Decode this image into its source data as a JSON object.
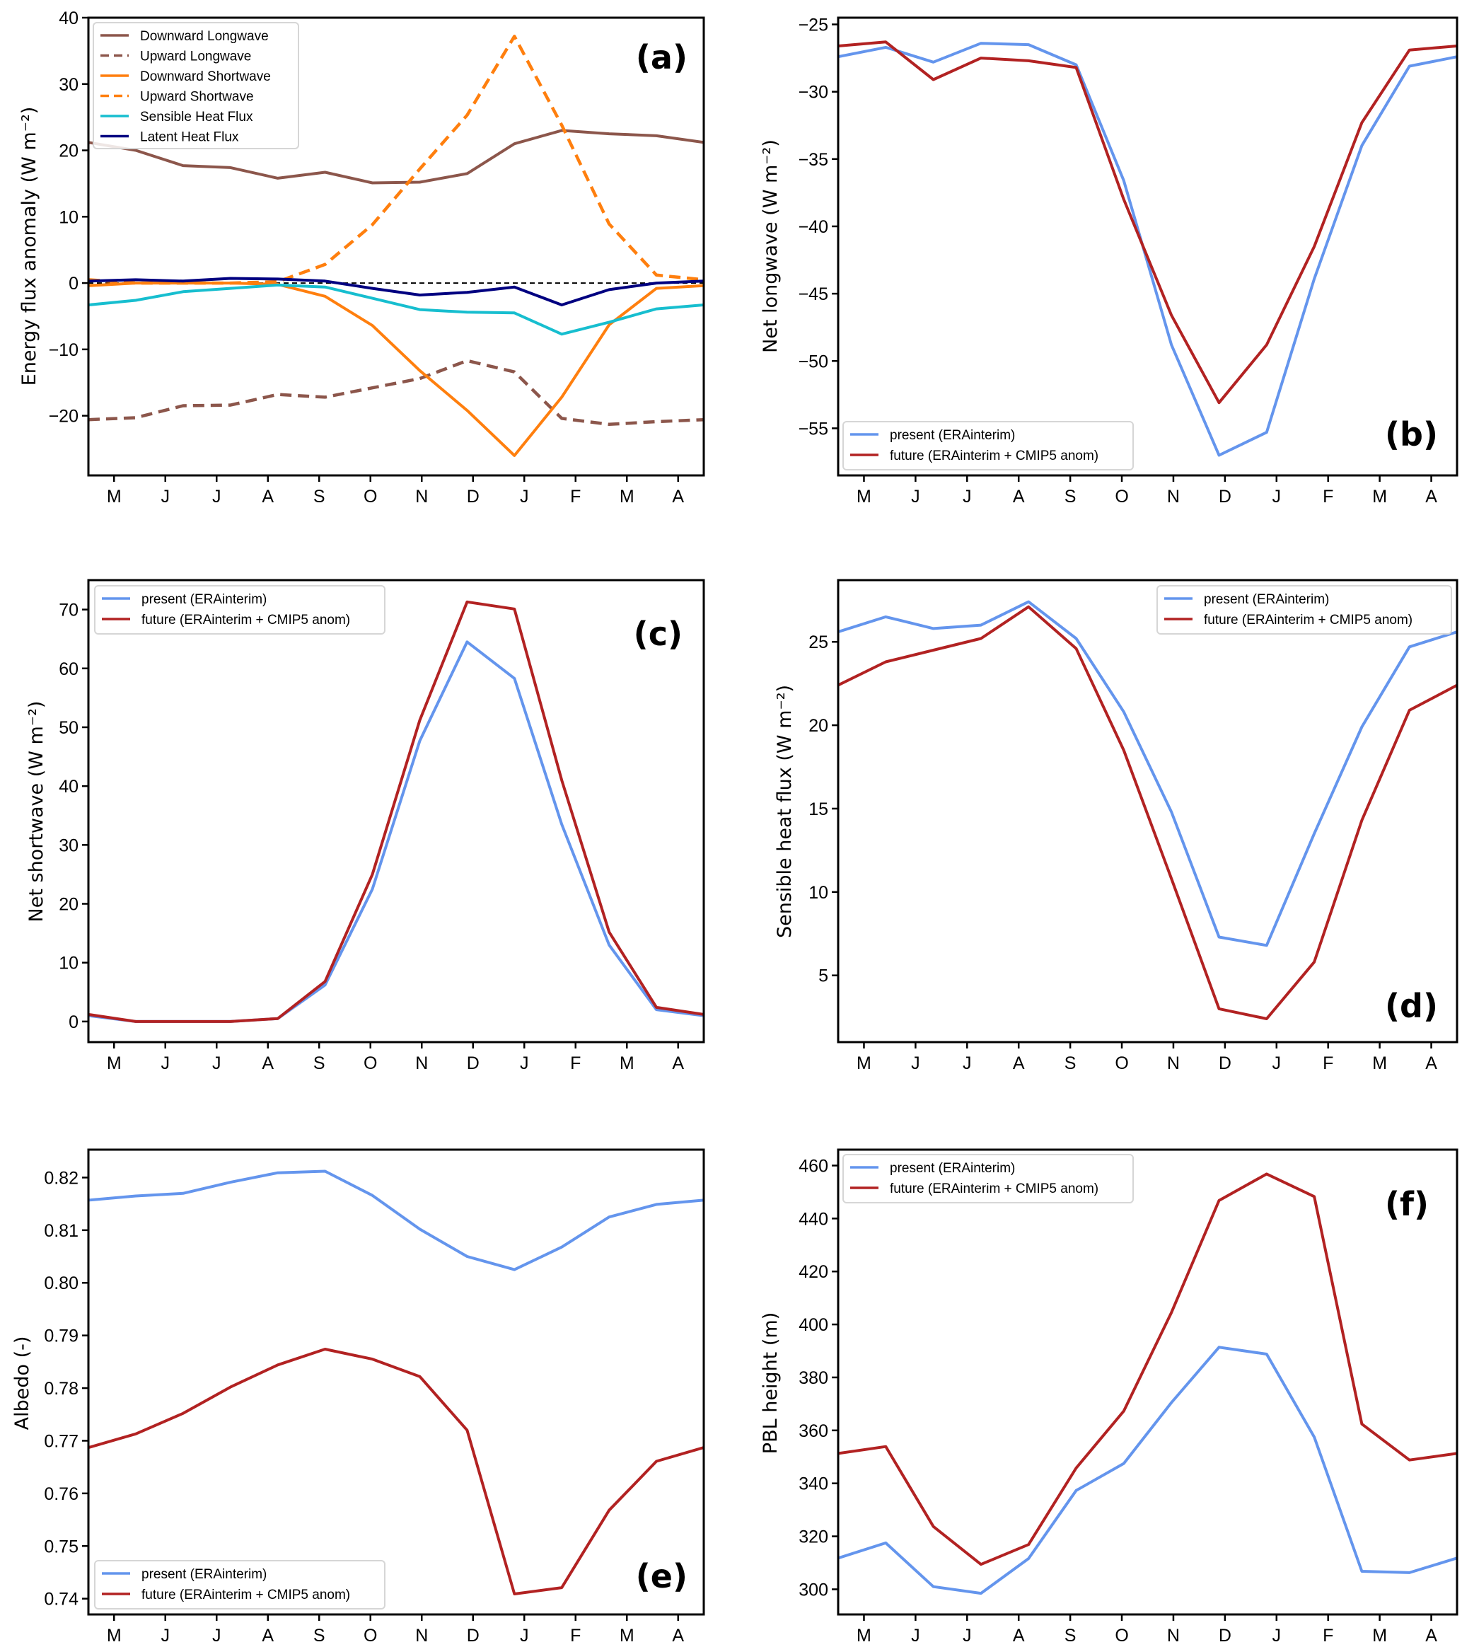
{
  "figure": {
    "months": [
      "M",
      "J",
      "J",
      "A",
      "S",
      "O",
      "N",
      "D",
      "J",
      "F",
      "M",
      "A"
    ]
  },
  "chart_data": [
    {
      "id": "a",
      "type": "line",
      "panel_label": "(a)",
      "ylabel": "Energy flux anomaly (W m⁻²)",
      "xlabel": "",
      "x_tick_labels": [
        "M",
        "J",
        "J",
        "A",
        "S",
        "O",
        "N",
        "D",
        "J",
        "F",
        "M",
        "A"
      ],
      "ylim": [
        -29,
        40
      ],
      "yticks": [
        -20,
        -10,
        0,
        10,
        20,
        30,
        40
      ],
      "ytick_labels": [
        "−20",
        "−10",
        "0",
        "10",
        "20",
        "30",
        "40"
      ],
      "zero_line": true,
      "legend_position": "top-left",
      "series": [
        {
          "name": "Downward Longwave",
          "color": "#8c564b",
          "style": "solid",
          "values": [
            21.2,
            20.0,
            17.7,
            17.4,
            15.8,
            16.7,
            15.1,
            15.2,
            16.5,
            21.0,
            23.0,
            22.5,
            22.2,
            21.2
          ]
        },
        {
          "name": "Upward Longwave",
          "color": "#8c564b",
          "style": "dashed",
          "values": [
            -20.6,
            -20.3,
            -18.5,
            -18.4,
            -16.8,
            -17.2,
            -15.8,
            -14.4,
            -11.7,
            -13.4,
            -20.4,
            -21.3,
            -20.9,
            -20.6
          ]
        },
        {
          "name": "Downward Shortwave",
          "color": "#ff7f0e",
          "style": "solid",
          "values": [
            -0.4,
            0.0,
            0.0,
            0.0,
            -0.2,
            -2.0,
            -6.4,
            -13.2,
            -19.2,
            -26.0,
            -17.2,
            -6.3,
            -0.8,
            -0.4
          ]
        },
        {
          "name": "Upward Shortwave",
          "color": "#ff7f0e",
          "style": "dashed",
          "values": [
            0.5,
            0.0,
            0.0,
            0.0,
            0.2,
            2.8,
            8.8,
            17.2,
            25.3,
            37.2,
            23.8,
            8.9,
            1.2,
            0.5
          ]
        },
        {
          "name": "Sensible Heat Flux",
          "color": "#17becf",
          "style": "solid",
          "values": [
            -3.3,
            -2.6,
            -1.3,
            -0.8,
            -0.3,
            -0.6,
            -2.3,
            -4.0,
            -4.4,
            -4.5,
            -7.7,
            -5.9,
            -3.9,
            -3.3
          ]
        },
        {
          "name": "Latent Heat Flux",
          "color": "#000080",
          "style": "solid",
          "values": [
            0.3,
            0.5,
            0.3,
            0.7,
            0.6,
            0.3,
            -0.8,
            -1.8,
            -1.4,
            -0.6,
            -3.3,
            -1.0,
            0.0,
            0.3
          ]
        }
      ]
    },
    {
      "id": "b",
      "type": "line",
      "panel_label": "(b)",
      "ylabel": "Net longwave (W m⁻²)",
      "xlabel": "",
      "x_tick_labels": [
        "M",
        "J",
        "J",
        "A",
        "S",
        "O",
        "N",
        "D",
        "J",
        "F",
        "M",
        "A"
      ],
      "ylim": [
        -58.5,
        -24.5
      ],
      "yticks": [
        -55,
        -50,
        -45,
        -40,
        -35,
        -30,
        -25
      ],
      "ytick_labels": [
        "−55",
        "−50",
        "−45",
        "−40",
        "−35",
        "−30",
        "−25"
      ],
      "legend_position": "bottom-left",
      "series": [
        {
          "name": "present (ERAinterim)",
          "color": "#6495ed",
          "style": "solid",
          "values": [
            -27.4,
            -26.7,
            -27.8,
            -26.4,
            -26.5,
            -28.0,
            -36.6,
            -48.8,
            -57.0,
            -55.3,
            -43.9,
            -34.0,
            -28.1,
            -27.4
          ]
        },
        {
          "name": "future (ERAinterim + CMIP5 anom)",
          "color": "#b22222",
          "style": "solid",
          "values": [
            -26.6,
            -26.3,
            -29.1,
            -27.5,
            -27.7,
            -28.2,
            -38.0,
            -46.6,
            -53.1,
            -48.8,
            -41.5,
            -32.3,
            -26.9,
            -26.6
          ]
        }
      ]
    },
    {
      "id": "c",
      "type": "line",
      "panel_label": "(c)",
      "ylabel": "Net shortwave (W m⁻²)",
      "xlabel": "",
      "x_tick_labels": [
        "M",
        "J",
        "J",
        "A",
        "S",
        "O",
        "N",
        "D",
        "J",
        "F",
        "M",
        "A"
      ],
      "ylim": [
        -3.5,
        75
      ],
      "yticks": [
        0,
        10,
        20,
        30,
        40,
        50,
        60,
        70
      ],
      "ytick_labels": [
        "0",
        "10",
        "20",
        "30",
        "40",
        "50",
        "60",
        "70"
      ],
      "legend_position": "top-left",
      "series": [
        {
          "name": "present (ERAinterim)",
          "color": "#6495ed",
          "style": "solid",
          "values": [
            1.0,
            0.0,
            0.0,
            0.0,
            0.5,
            6.2,
            22.5,
            47.7,
            64.5,
            58.3,
            33.5,
            13.0,
            2.0,
            1.0
          ]
        },
        {
          "name": "future (ERAinterim + CMIP5 anom)",
          "color": "#b22222",
          "style": "solid",
          "values": [
            1.2,
            0.0,
            0.0,
            0.0,
            0.5,
            6.8,
            25.0,
            51.2,
            71.3,
            70.1,
            41.0,
            15.2,
            2.4,
            1.2
          ]
        }
      ]
    },
    {
      "id": "d",
      "type": "line",
      "panel_label": "(d)",
      "ylabel": "Sensible heat flux (W m⁻²)",
      "xlabel": "",
      "x_tick_labels": [
        "M",
        "J",
        "J",
        "A",
        "S",
        "O",
        "N",
        "D",
        "J",
        "F",
        "M",
        "A"
      ],
      "ylim": [
        1.0,
        28.7
      ],
      "yticks": [
        5,
        10,
        15,
        20,
        25
      ],
      "ytick_labels": [
        "5",
        "10",
        "15",
        "20",
        "25"
      ],
      "legend_position": "top-right",
      "series": [
        {
          "name": "present (ERAinterim)",
          "color": "#6495ed",
          "style": "solid",
          "values": [
            25.6,
            26.5,
            25.8,
            26.0,
            27.4,
            25.2,
            20.8,
            14.8,
            7.3,
            6.8,
            13.5,
            19.9,
            24.7,
            25.6
          ]
        },
        {
          "name": "future (ERAinterim + CMIP5 anom)",
          "color": "#b22222",
          "style": "solid",
          "values": [
            22.4,
            23.8,
            24.5,
            25.2,
            27.1,
            24.6,
            18.5,
            10.8,
            3.0,
            2.4,
            5.8,
            14.3,
            20.9,
            22.4
          ]
        }
      ]
    },
    {
      "id": "e",
      "type": "line",
      "panel_label": "(e)",
      "ylabel": "Albedo (-)",
      "xlabel": "",
      "x_tick_labels": [
        "M",
        "J",
        "J",
        "A",
        "S",
        "O",
        "N",
        "D",
        "J",
        "F",
        "M",
        "A"
      ],
      "ylim": [
        0.737,
        0.8253
      ],
      "yticks": [
        0.74,
        0.75,
        0.76,
        0.77,
        0.78,
        0.79,
        0.8,
        0.81,
        0.82
      ],
      "ytick_labels": [
        "0.74",
        "0.75",
        "0.76",
        "0.77",
        "0.78",
        "0.79",
        "0.80",
        "0.81",
        "0.82"
      ],
      "legend_position": "bottom-left",
      "series": [
        {
          "name": "present (ERAinterim)",
          "color": "#6495ed",
          "style": "solid",
          "values": [
            0.8157,
            0.8165,
            0.817,
            0.8191,
            0.8209,
            0.8212,
            0.8166,
            0.8102,
            0.805,
            0.8025,
            0.8068,
            0.8125,
            0.8149,
            0.8157
          ]
        },
        {
          "name": "future (ERAinterim + CMIP5 anom)",
          "color": "#b22222",
          "style": "solid",
          "values": [
            0.7687,
            0.7713,
            0.7752,
            0.7802,
            0.7844,
            0.7874,
            0.7855,
            0.7822,
            0.772,
            0.7409,
            0.7421,
            0.7568,
            0.7661,
            0.7687
          ]
        }
      ]
    },
    {
      "id": "f",
      "type": "line",
      "panel_label": "(f)",
      "ylabel": "PBL height (m)",
      "xlabel": "",
      "x_tick_labels": [
        "M",
        "J",
        "J",
        "A",
        "S",
        "O",
        "N",
        "D",
        "J",
        "F",
        "M",
        "A"
      ],
      "ylim": [
        290.5,
        466
      ],
      "yticks": [
        300,
        320,
        340,
        360,
        380,
        400,
        420,
        440,
        460
      ],
      "ytick_labels": [
        "300",
        "320",
        "340",
        "360",
        "380",
        "400",
        "420",
        "440",
        "460"
      ],
      "legend_position": "top-left",
      "series": [
        {
          "name": "present (ERAinterim)",
          "color": "#6495ed",
          "style": "solid",
          "values": [
            311.8,
            317.5,
            301.0,
            298.5,
            311.6,
            337.3,
            347.5,
            370.5,
            391.4,
            388.8,
            357.5,
            306.8,
            306.3,
            311.8
          ]
        },
        {
          "name": "future (ERAinterim + CMIP5 anom)",
          "color": "#b22222",
          "style": "solid",
          "values": [
            351.3,
            353.9,
            323.7,
            309.4,
            316.9,
            345.8,
            367.3,
            404.5,
            446.8,
            456.8,
            448.3,
            362.4,
            348.8,
            351.3
          ]
        }
      ]
    }
  ]
}
